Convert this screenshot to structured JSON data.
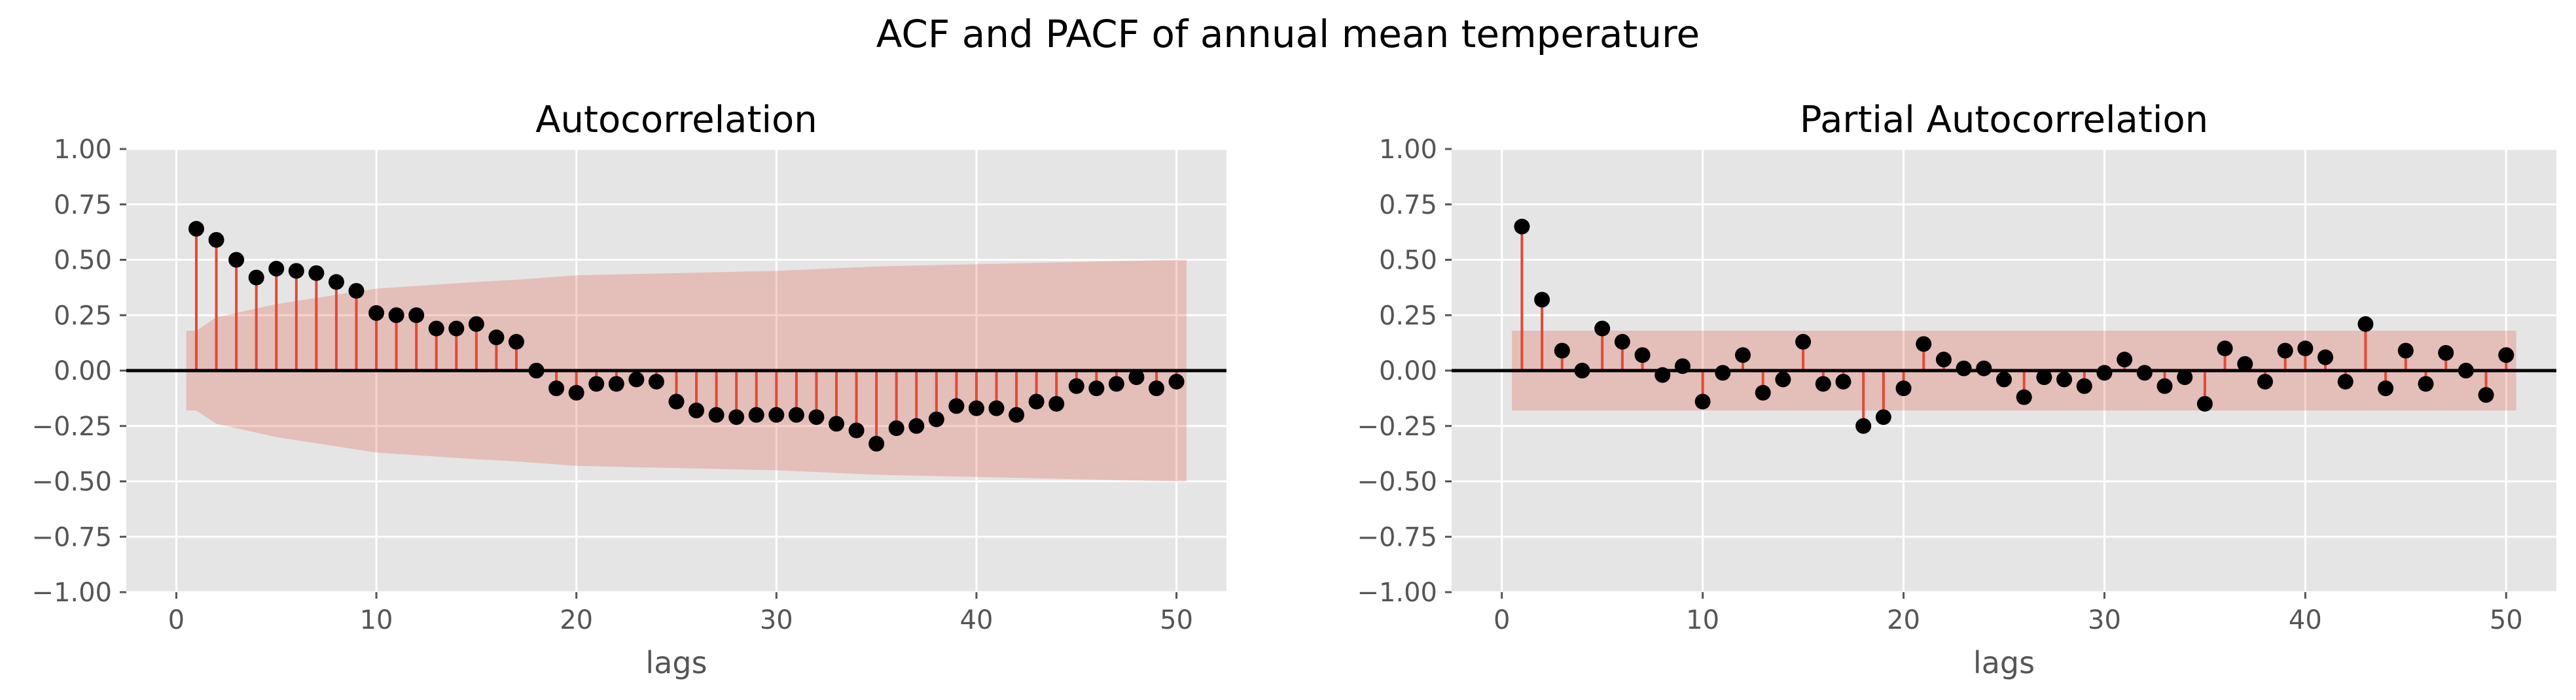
{
  "figure": {
    "suptitle": "ACF and PACF of annual mean temperature"
  },
  "colors": {
    "panel_bg": "#e5e5e5",
    "grid": "#ffffff",
    "stem": "#e24a33",
    "marker": "#000000",
    "confidence_band": "#e24a33",
    "zero_line": "#000000",
    "tick_text": "#555555"
  },
  "chart_data": [
    {
      "type": "stem",
      "title": "Autocorrelation",
      "xlabel": "lags",
      "ylabel": "",
      "xlim": [
        -2.5,
        52.5
      ],
      "ylim": [
        -1.0,
        1.0
      ],
      "xticks": [
        0,
        10,
        20,
        30,
        40,
        50
      ],
      "xtick_labels": [
        "0",
        "10",
        "20",
        "30",
        "40",
        "50"
      ],
      "yticks": [
        -1.0,
        -0.75,
        -0.5,
        -0.25,
        0.0,
        0.25,
        0.5,
        0.75,
        1.0
      ],
      "ytick_labels": [
        "−1.00",
        "−0.75",
        "−0.50",
        "−0.25",
        "0.00",
        "0.25",
        "0.50",
        "0.75",
        "1.00"
      ],
      "grid": true,
      "lags": [
        1,
        2,
        3,
        4,
        5,
        6,
        7,
        8,
        9,
        10,
        11,
        12,
        13,
        14,
        15,
        16,
        17,
        18,
        19,
        20,
        21,
        22,
        23,
        24,
        25,
        26,
        27,
        28,
        29,
        30,
        31,
        32,
        33,
        34,
        35,
        36,
        37,
        38,
        39,
        40,
        41,
        42,
        43,
        44,
        45,
        46,
        47,
        48,
        49,
        50
      ],
      "values": [
        0.64,
        0.59,
        0.5,
        0.42,
        0.46,
        0.45,
        0.44,
        0.4,
        0.36,
        0.26,
        0.25,
        0.25,
        0.19,
        0.19,
        0.21,
        0.15,
        0.13,
        0.0,
        -0.08,
        -0.1,
        -0.06,
        -0.06,
        -0.04,
        -0.05,
        -0.14,
        -0.18,
        -0.2,
        -0.21,
        -0.2,
        -0.2,
        -0.2,
        -0.21,
        -0.24,
        -0.27,
        -0.33,
        -0.26,
        -0.25,
        -0.22,
        -0.16,
        -0.17,
        -0.17,
        -0.2,
        -0.14,
        -0.15,
        -0.07,
        -0.08,
        -0.06,
        -0.03,
        -0.08,
        -0.05
      ],
      "confidence_band": {
        "x": [
          0.5,
          1,
          2,
          5,
          10,
          15,
          17,
          20,
          25,
          30,
          35,
          40,
          45,
          50,
          50.5
        ],
        "upper": [
          0.18,
          0.18,
          0.24,
          0.3,
          0.37,
          0.4,
          0.41,
          0.43,
          0.44,
          0.45,
          0.47,
          0.48,
          0.49,
          0.5,
          0.5
        ],
        "lower": [
          -0.18,
          -0.18,
          -0.24,
          -0.3,
          -0.37,
          -0.4,
          -0.41,
          -0.43,
          -0.44,
          -0.45,
          -0.47,
          -0.48,
          -0.49,
          -0.5,
          -0.5
        ]
      }
    },
    {
      "type": "stem",
      "title": "Partial Autocorrelation",
      "xlabel": "lags",
      "ylabel": "",
      "xlim": [
        -2.5,
        52.5
      ],
      "ylim": [
        -1.0,
        1.0
      ],
      "xticks": [
        0,
        10,
        20,
        30,
        40,
        50
      ],
      "xtick_labels": [
        "0",
        "10",
        "20",
        "30",
        "40",
        "50"
      ],
      "yticks": [
        -1.0,
        -0.75,
        -0.5,
        -0.25,
        0.0,
        0.25,
        0.5,
        0.75,
        1.0
      ],
      "ytick_labels": [
        "−1.00",
        "−0.75",
        "−0.50",
        "−0.25",
        "0.00",
        "0.25",
        "0.50",
        "0.75",
        "1.00"
      ],
      "grid": true,
      "lags": [
        1,
        2,
        3,
        4,
        5,
        6,
        7,
        8,
        9,
        10,
        11,
        12,
        13,
        14,
        15,
        16,
        17,
        18,
        19,
        20,
        21,
        22,
        23,
        24,
        25,
        26,
        27,
        28,
        29,
        30,
        31,
        32,
        33,
        34,
        35,
        36,
        37,
        38,
        39,
        40,
        41,
        42,
        43,
        44,
        45,
        46,
        47,
        48,
        49,
        50
      ],
      "values": [
        0.65,
        0.32,
        0.09,
        0.0,
        0.19,
        0.13,
        0.07,
        -0.02,
        0.02,
        -0.14,
        -0.01,
        0.07,
        -0.1,
        -0.04,
        0.13,
        -0.06,
        -0.05,
        -0.25,
        -0.21,
        -0.08,
        0.12,
        0.05,
        0.01,
        0.01,
        -0.04,
        -0.12,
        -0.03,
        -0.04,
        -0.07,
        -0.01,
        0.05,
        -0.01,
        -0.07,
        -0.03,
        -0.15,
        0.1,
        0.03,
        -0.05,
        0.09,
        0.1,
        0.06,
        -0.05,
        0.21,
        -0.08,
        0.09,
        -0.06,
        0.08,
        0.0,
        -0.11,
        0.07
      ],
      "confidence_band": {
        "x": [
          0.5,
          50.5
        ],
        "upper": [
          0.18,
          0.18
        ],
        "lower": [
          -0.18,
          -0.18
        ]
      }
    }
  ]
}
